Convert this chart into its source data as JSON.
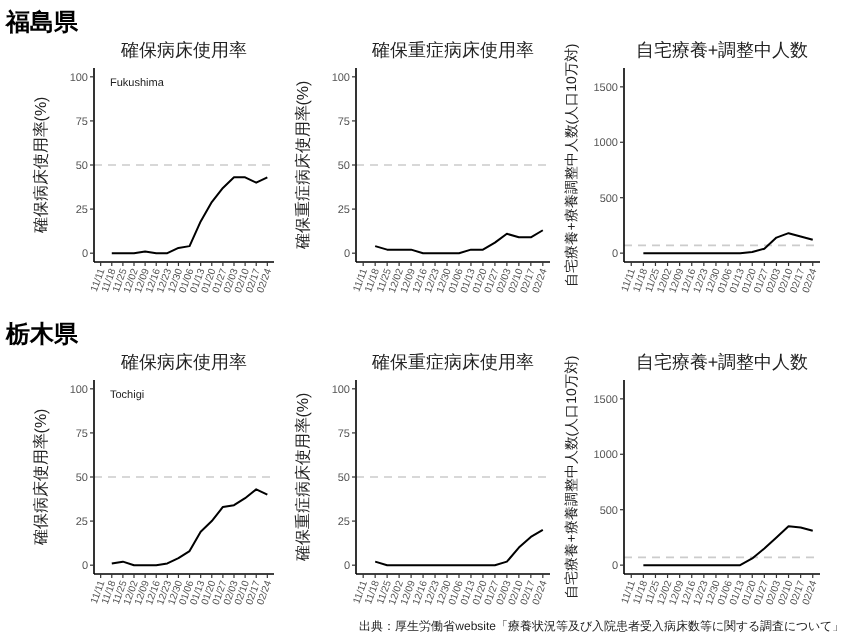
{
  "chart_data": [
    {
      "type": "line",
      "title": "確保病床使用率",
      "ylabel": "確保病床使用率(%)",
      "categories": [
        "11/11",
        "11/18",
        "11/25",
        "12/02",
        "12/09",
        "12/16",
        "12/23",
        "12/30",
        "01/06",
        "01/13",
        "01/20",
        "01/27",
        "02/03",
        "02/10",
        "02/17",
        "02/24"
      ],
      "series": [
        {
          "color": "#000000",
          "values": [
            null,
            0,
            0,
            0,
            1,
            0,
            0,
            3,
            4,
            18,
            29,
            37,
            43,
            43,
            40,
            43
          ]
        }
      ],
      "ylim": [
        -5,
        105
      ],
      "yticks": [
        0,
        25,
        50,
        75,
        100
      ],
      "ref_lines": [
        {
          "axis": "y",
          "value": 50,
          "color": "#cccccc",
          "line_style": "dashed"
        }
      ],
      "annotations": [
        "福島県",
        "Fukushima"
      ]
    },
    {
      "type": "line",
      "title": "確保重症病床使用率",
      "ylabel": "確保重症病床使用率(%)",
      "categories": [
        "11/11",
        "11/18",
        "11/25",
        "12/02",
        "12/09",
        "12/16",
        "12/23",
        "12/30",
        "01/06",
        "01/13",
        "01/20",
        "01/27",
        "02/03",
        "02/10",
        "02/17",
        "02/24"
      ],
      "series": [
        {
          "color": "#000000",
          "values": [
            null,
            4,
            2,
            2,
            2,
            0,
            0,
            0,
            0,
            2,
            2,
            6,
            11,
            9,
            9,
            13
          ]
        }
      ],
      "ylim": [
        -5,
        105
      ],
      "yticks": [
        0,
        25,
        50,
        75,
        100
      ],
      "ref_lines": [
        {
          "axis": "y",
          "value": 50,
          "color": "#cccccc",
          "line_style": "dashed"
        }
      ]
    },
    {
      "type": "line",
      "title": "自宅療養+調整中人数",
      "ylabel": "自宅療養+療養調整中人数(人口10万対)",
      "categories": [
        "11/11",
        "11/18",
        "11/25",
        "12/02",
        "12/09",
        "12/16",
        "12/23",
        "12/30",
        "01/06",
        "01/13",
        "01/20",
        "01/27",
        "02/03",
        "02/10",
        "02/17",
        "02/24"
      ],
      "series": [
        {
          "color": "#000000",
          "values": [
            null,
            0,
            0,
            0,
            0,
            0,
            0,
            0,
            0,
            0,
            10,
            40,
            140,
            180,
            150,
            120
          ]
        }
      ],
      "ylim": [
        -80,
        1670
      ],
      "yticks": [
        0,
        500,
        1000,
        1500
      ],
      "ref_lines": [
        {
          "axis": "y",
          "value": 70,
          "color": "#cccccc",
          "line_style": "dashed"
        }
      ]
    },
    {
      "type": "line",
      "title": "確保病床使用率",
      "ylabel": "確保病床使用率(%)",
      "categories": [
        "11/11",
        "11/18",
        "11/25",
        "12/02",
        "12/09",
        "12/16",
        "12/23",
        "12/30",
        "01/06",
        "01/13",
        "01/20",
        "01/27",
        "02/03",
        "02/10",
        "02/17",
        "02/24"
      ],
      "series": [
        {
          "color": "#000000",
          "values": [
            null,
            1,
            2,
            0,
            0,
            0,
            1,
            4,
            8,
            19,
            25,
            33,
            34,
            38,
            43,
            40
          ]
        }
      ],
      "ylim": [
        -5,
        105
      ],
      "yticks": [
        0,
        25,
        50,
        75,
        100
      ],
      "ref_lines": [
        {
          "axis": "y",
          "value": 50,
          "color": "#cccccc",
          "line_style": "dashed"
        }
      ],
      "annotations": [
        "栃木県",
        "Tochigi"
      ]
    },
    {
      "type": "line",
      "title": "確保重症病床使用率",
      "ylabel": "確保重症病床使用率(%)",
      "categories": [
        "11/11",
        "11/18",
        "11/25",
        "12/02",
        "12/09",
        "12/16",
        "12/23",
        "12/30",
        "01/06",
        "01/13",
        "01/20",
        "01/27",
        "02/03",
        "02/10",
        "02/17",
        "02/24"
      ],
      "series": [
        {
          "color": "#000000",
          "values": [
            null,
            2,
            0,
            0,
            0,
            0,
            0,
            0,
            0,
            0,
            0,
            0,
            2,
            10,
            16,
            20
          ]
        }
      ],
      "ylim": [
        -5,
        105
      ],
      "yticks": [
        0,
        25,
        50,
        75,
        100
      ],
      "ref_lines": [
        {
          "axis": "y",
          "value": 50,
          "color": "#cccccc",
          "line_style": "dashed"
        }
      ]
    },
    {
      "type": "line",
      "title": "自宅療養+調整中人数",
      "ylabel": "自宅療養+療養調整中人数(人口10万対)",
      "categories": [
        "11/11",
        "11/18",
        "11/25",
        "12/02",
        "12/09",
        "12/16",
        "12/23",
        "12/30",
        "01/06",
        "01/13",
        "01/20",
        "01/27",
        "02/03",
        "02/10",
        "02/17",
        "02/24"
      ],
      "series": [
        {
          "color": "#000000",
          "values": [
            null,
            0,
            0,
            0,
            0,
            0,
            0,
            0,
            0,
            0,
            60,
            150,
            250,
            350,
            340,
            310
          ]
        }
      ],
      "ylim": [
        -80,
        1670
      ],
      "yticks": [
        0,
        500,
        1000,
        1500
      ],
      "ref_lines": [
        {
          "axis": "y",
          "value": 70,
          "color": "#cccccc",
          "line_style": "dashed"
        }
      ],
      "annotations": [
        "出典：厚生労働省website「療養状況等及び入院患者受入病床数等に関する調査について」"
      ]
    }
  ]
}
